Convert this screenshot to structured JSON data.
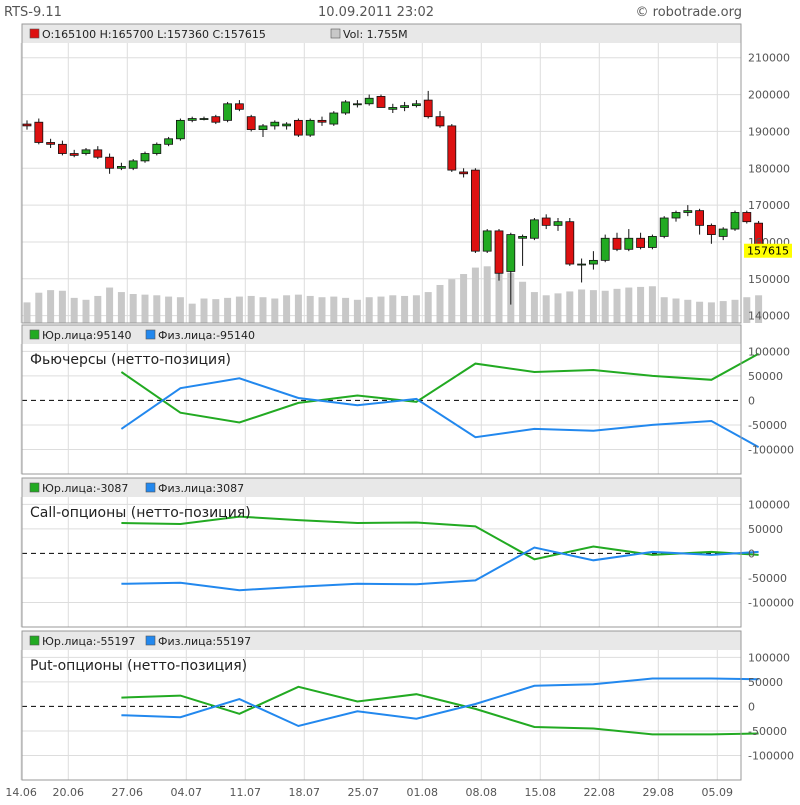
{
  "header": {
    "symbol": "RTS-9.11",
    "datetime": "10.09.2011 23:02",
    "site": "© robotrade.org"
  },
  "colors": {
    "up": "#22aa22",
    "down": "#dd1111",
    "legal": "#22aa22",
    "physical": "#2288ee",
    "volume": "#c8c8c8",
    "grid": "#dddddd",
    "last_price_bg": "#ffff00"
  },
  "chart_data": [
    {
      "type": "candlestick",
      "legend": {
        "ohlc": "O:165100  H:165700  L:157360  C:157615",
        "volume": "Vol: 1.755M"
      },
      "last_price": 157615,
      "ylim": [
        138000,
        214000
      ],
      "yticks": [
        140000,
        150000,
        160000,
        170000,
        180000,
        190000,
        200000,
        210000
      ],
      "ytick_labels": [
        "140000",
        "150000",
        "160000",
        "170000",
        "180000",
        "190000",
        "200000",
        "210000"
      ],
      "volume_max": 9.0,
      "candles": [
        {
          "o": 192000,
          "h": 193000,
          "l": 190500,
          "c": 191500,
          "v": 3.2
        },
        {
          "o": 192500,
          "h": 193500,
          "l": 186500,
          "c": 187000,
          "v": 4.7
        },
        {
          "o": 187000,
          "h": 188000,
          "l": 185500,
          "c": 186500,
          "v": 5.1
        },
        {
          "o": 186500,
          "h": 187500,
          "l": 183500,
          "c": 184000,
          "v": 5.0
        },
        {
          "o": 184000,
          "h": 185000,
          "l": 183000,
          "c": 183500,
          "v": 3.9
        },
        {
          "o": 184000,
          "h": 185500,
          "l": 183500,
          "c": 185000,
          "v": 3.6
        },
        {
          "o": 185000,
          "h": 186000,
          "l": 182500,
          "c": 183000,
          "v": 4.2
        },
        {
          "o": 183000,
          "h": 184000,
          "l": 178500,
          "c": 180000,
          "v": 5.5
        },
        {
          "o": 180000,
          "h": 181500,
          "l": 179500,
          "c": 180500,
          "v": 4.8
        },
        {
          "o": 180000,
          "h": 182500,
          "l": 179500,
          "c": 182000,
          "v": 4.5
        },
        {
          "o": 182000,
          "h": 184500,
          "l": 181500,
          "c": 184000,
          "v": 4.4
        },
        {
          "o": 184000,
          "h": 187000,
          "l": 183500,
          "c": 186500,
          "v": 4.3
        },
        {
          "o": 186500,
          "h": 188500,
          "l": 186000,
          "c": 188000,
          "v": 4.1
        },
        {
          "o": 188000,
          "h": 193500,
          "l": 187500,
          "c": 193000,
          "v": 4.0
        },
        {
          "o": 193000,
          "h": 194000,
          "l": 192500,
          "c": 193500,
          "v": 3.0
        },
        {
          "o": 193500,
          "h": 194000,
          "l": 193000,
          "c": 193500,
          "v": 3.8
        },
        {
          "o": 194000,
          "h": 194500,
          "l": 192000,
          "c": 192500,
          "v": 3.7
        },
        {
          "o": 193000,
          "h": 198000,
          "l": 192500,
          "c": 197500,
          "v": 3.9
        },
        {
          "o": 197500,
          "h": 198500,
          "l": 195500,
          "c": 196000,
          "v": 4.1
        },
        {
          "o": 194000,
          "h": 194500,
          "l": 190000,
          "c": 190500,
          "v": 4.2
        },
        {
          "o": 190500,
          "h": 192000,
          "l": 188500,
          "c": 191500,
          "v": 4.0
        },
        {
          "o": 191500,
          "h": 193000,
          "l": 190500,
          "c": 192500,
          "v": 3.8
        },
        {
          "o": 191500,
          "h": 192500,
          "l": 190500,
          "c": 192000,
          "v": 4.3
        },
        {
          "o": 193000,
          "h": 193500,
          "l": 188500,
          "c": 189000,
          "v": 4.4
        },
        {
          "o": 189000,
          "h": 193500,
          "l": 188500,
          "c": 193000,
          "v": 4.2
        },
        {
          "o": 193000,
          "h": 194000,
          "l": 191500,
          "c": 192500,
          "v": 4.0
        },
        {
          "o": 192000,
          "h": 195500,
          "l": 191500,
          "c": 195000,
          "v": 4.1
        },
        {
          "o": 195000,
          "h": 198500,
          "l": 194500,
          "c": 198000,
          "v": 3.9
        },
        {
          "o": 197500,
          "h": 198500,
          "l": 196500,
          "c": 197500,
          "v": 3.6
        },
        {
          "o": 197500,
          "h": 200000,
          "l": 197000,
          "c": 199000,
          "v": 4.0
        },
        {
          "o": 199500,
          "h": 200000,
          "l": 196500,
          "c": 196500,
          "v": 4.1
        },
        {
          "o": 196000,
          "h": 197500,
          "l": 195000,
          "c": 196500,
          "v": 4.3
        },
        {
          "o": 196500,
          "h": 198000,
          "l": 195500,
          "c": 197000,
          "v": 4.2
        },
        {
          "o": 197000,
          "h": 198500,
          "l": 196500,
          "c": 197500,
          "v": 4.3
        },
        {
          "o": 198500,
          "h": 201000,
          "l": 193500,
          "c": 194000,
          "v": 4.8
        },
        {
          "o": 194000,
          "h": 195500,
          "l": 191000,
          "c": 191500,
          "v": 5.9
        },
        {
          "o": 191500,
          "h": 192000,
          "l": 179000,
          "c": 179500,
          "v": 6.8
        },
        {
          "o": 179000,
          "h": 180000,
          "l": 177500,
          "c": 178500,
          "v": 7.6
        },
        {
          "o": 179500,
          "h": 180000,
          "l": 157000,
          "c": 157500,
          "v": 8.6
        },
        {
          "o": 157500,
          "h": 163500,
          "l": 157000,
          "c": 163000,
          "v": 8.8
        },
        {
          "o": 163000,
          "h": 163500,
          "l": 149500,
          "c": 151500,
          "v": 8.8
        },
        {
          "o": 152000,
          "h": 162500,
          "l": 143000,
          "c": 162000,
          "v": 7.8
        },
        {
          "o": 161000,
          "h": 162000,
          "l": 153500,
          "c": 161500,
          "v": 6.4
        },
        {
          "o": 161000,
          "h": 166500,
          "l": 160500,
          "c": 166000,
          "v": 4.8
        },
        {
          "o": 166500,
          "h": 167500,
          "l": 163500,
          "c": 164500,
          "v": 4.3
        },
        {
          "o": 164500,
          "h": 166500,
          "l": 163000,
          "c": 165500,
          "v": 4.6
        },
        {
          "o": 165500,
          "h": 166500,
          "l": 153500,
          "c": 154000,
          "v": 4.9
        },
        {
          "o": 154000,
          "h": 155500,
          "l": 149000,
          "c": 154000,
          "v": 5.2
        },
        {
          "o": 154000,
          "h": 157500,
          "l": 152500,
          "c": 155000,
          "v": 5.1
        },
        {
          "o": 155000,
          "h": 162000,
          "l": 154500,
          "c": 161000,
          "v": 5.0
        },
        {
          "o": 161000,
          "h": 162500,
          "l": 157500,
          "c": 158000,
          "v": 5.3
        },
        {
          "o": 158000,
          "h": 163500,
          "l": 157500,
          "c": 161000,
          "v": 5.5
        },
        {
          "o": 161000,
          "h": 162500,
          "l": 158000,
          "c": 158500,
          "v": 5.6
        },
        {
          "o": 158500,
          "h": 162000,
          "l": 158000,
          "c": 161500,
          "v": 5.7
        },
        {
          "o": 161500,
          "h": 167000,
          "l": 161000,
          "c": 166500,
          "v": 4.0
        },
        {
          "o": 166500,
          "h": 168500,
          "l": 165500,
          "c": 168000,
          "v": 3.8
        },
        {
          "o": 168000,
          "h": 170000,
          "l": 167000,
          "c": 168500,
          "v": 3.6
        },
        {
          "o": 168500,
          "h": 169000,
          "l": 162000,
          "c": 164500,
          "v": 3.3
        },
        {
          "o": 164500,
          "h": 165000,
          "l": 159500,
          "c": 162000,
          "v": 3.2
        },
        {
          "o": 161500,
          "h": 164000,
          "l": 160500,
          "c": 163500,
          "v": 3.4
        },
        {
          "o": 163500,
          "h": 168500,
          "l": 163000,
          "c": 168000,
          "v": 3.6
        },
        {
          "o": 168000,
          "h": 168500,
          "l": 165000,
          "c": 165500,
          "v": 4.0
        },
        {
          "o": 165100,
          "h": 165700,
          "l": 157360,
          "c": 157615,
          "v": 4.3
        }
      ]
    },
    {
      "type": "line",
      "title": "Фьючерсы (нетто-позиция)",
      "legend": [
        "Юр.лица:95140",
        "Физ.лица:-95140"
      ],
      "ylim": [
        -150000,
        115000
      ],
      "yticks": [
        -100000,
        -50000,
        0,
        50000,
        100000
      ],
      "ytick_labels": [
        "-100000",
        "-50000",
        "0",
        "50000",
        "100000"
      ],
      "series": [
        {
          "name": "Юр.лица",
          "x": [
            8,
            13,
            18,
            23,
            28,
            33,
            38,
            43,
            48,
            53,
            58,
            62
          ],
          "values": [
            58000,
            -25000,
            -45000,
            -5000,
            10000,
            -3000,
            75000,
            58000,
            62000,
            50000,
            42000,
            95140
          ]
        },
        {
          "name": "Физ.лица",
          "x": [
            8,
            13,
            18,
            23,
            28,
            33,
            38,
            43,
            48,
            53,
            58,
            62
          ],
          "values": [
            -58000,
            25000,
            45000,
            5000,
            -10000,
            3000,
            -75000,
            -58000,
            -62000,
            -50000,
            -42000,
            -95140
          ]
        }
      ]
    },
    {
      "type": "line",
      "title": "Call-опционы (нетто-позиция)",
      "legend": [
        "Юр.лица:-3087",
        "Физ.лица:3087"
      ],
      "ylim": [
        -150000,
        115000
      ],
      "yticks": [
        -100000,
        -50000,
        0,
        50000,
        100000
      ],
      "ytick_labels": [
        "-100000",
        "-50000",
        "0",
        "50000",
        "100000"
      ],
      "series": [
        {
          "name": "Юр.лица",
          "x": [
            8,
            13,
            18,
            23,
            28,
            33,
            38,
            43,
            48,
            53,
            58,
            62
          ],
          "values": [
            62000,
            60000,
            75000,
            68000,
            62000,
            63000,
            55000,
            -12000,
            14000,
            -3000,
            3000,
            -3087
          ]
        },
        {
          "name": "Физ.лица",
          "x": [
            8,
            13,
            18,
            23,
            28,
            33,
            38,
            43,
            48,
            53,
            58,
            62
          ],
          "values": [
            -62000,
            -60000,
            -75000,
            -68000,
            -62000,
            -63000,
            -55000,
            12000,
            -14000,
            3000,
            -3000,
            3087
          ]
        }
      ]
    },
    {
      "type": "line",
      "title": "Put-опционы (нетто-позиция)",
      "legend": [
        "Юр.лица:-55197",
        "Физ.лица:55197"
      ],
      "ylim": [
        -150000,
        115000
      ],
      "yticks": [
        -100000,
        -50000,
        0,
        50000,
        100000
      ],
      "ytick_labels": [
        "-100000",
        "-50000",
        "0",
        "50000",
        "100000"
      ],
      "series": [
        {
          "name": "Юр.лица",
          "x": [
            8,
            13,
            18,
            23,
            28,
            33,
            38,
            43,
            48,
            53,
            58,
            62
          ],
          "values": [
            18000,
            22000,
            -15000,
            40000,
            10000,
            25000,
            -5000,
            -42000,
            -45000,
            -57000,
            -57000,
            -55197
          ]
        },
        {
          "name": "Физ.лица",
          "x": [
            8,
            13,
            18,
            23,
            28,
            33,
            38,
            43,
            48,
            53,
            58,
            62
          ],
          "values": [
            -18000,
            -22000,
            15000,
            -40000,
            -10000,
            -25000,
            5000,
            42000,
            45000,
            57000,
            57000,
            55197
          ]
        }
      ]
    }
  ],
  "xaxis": {
    "labels": [
      "14.06",
      "20.06",
      "27.06",
      "04.07",
      "11.07",
      "18.07",
      "25.07",
      "01.08",
      "08.08",
      "15.08",
      "22.08",
      "29.08",
      "05.09"
    ],
    "label_index": [
      0,
      4,
      9,
      14,
      19,
      24,
      29,
      34,
      39,
      44,
      49,
      54,
      59
    ]
  }
}
